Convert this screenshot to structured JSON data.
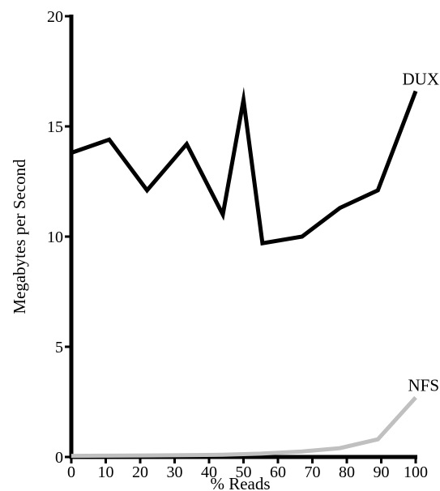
{
  "chart_data": {
    "type": "line",
    "title": "",
    "xlabel": "% Reads",
    "ylabel": "Megabytes per Second",
    "xlim": [
      0,
      100
    ],
    "ylim": [
      0,
      20
    ],
    "x_ticks": [
      0,
      10,
      20,
      30,
      40,
      50,
      60,
      70,
      80,
      90,
      100
    ],
    "y_ticks": [
      0,
      5,
      10,
      15,
      20
    ],
    "grid": false,
    "legend": "inline labels at line ends",
    "series": [
      {
        "name": "DUX",
        "color": "#000000",
        "x": [
          0,
          11,
          22,
          33.5,
          44,
          50,
          55.5,
          67,
          78,
          89,
          100
        ],
        "y": [
          13.8,
          14.4,
          12.1,
          14.2,
          11.0,
          16.2,
          9.7,
          10.0,
          11.3,
          12.1,
          16.6
        ]
      },
      {
        "name": "NFS",
        "color": "#c0c0c0",
        "x": [
          0,
          11,
          22,
          33,
          44,
          55,
          67,
          78,
          89,
          100
        ],
        "y": [
          0.05,
          0.06,
          0.07,
          0.08,
          0.1,
          0.15,
          0.25,
          0.4,
          0.8,
          2.7
        ]
      }
    ]
  }
}
